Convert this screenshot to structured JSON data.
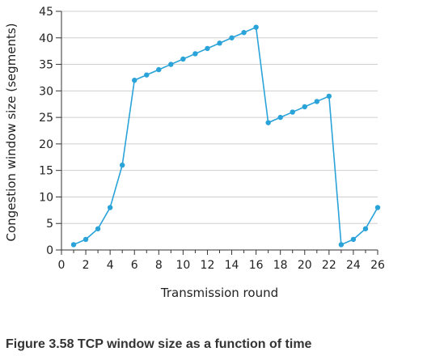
{
  "chart_data": {
    "type": "line",
    "xlabel": "Transmission round",
    "ylabel": "Congestion window size (segments)",
    "xlim": [
      0,
      26
    ],
    "ylim": [
      0,
      45
    ],
    "x_ticks": [
      0,
      2,
      4,
      6,
      8,
      10,
      12,
      14,
      16,
      18,
      20,
      22,
      24,
      26
    ],
    "y_ticks": [
      0,
      5,
      10,
      15,
      20,
      25,
      30,
      35,
      40,
      45
    ],
    "grid": true,
    "series": [
      {
        "color": "#2aa3d9",
        "x": [
          1,
          2,
          3,
          4,
          5,
          6,
          7,
          8,
          9,
          10,
          11,
          12,
          13,
          14,
          15,
          16,
          17,
          18,
          19,
          20,
          21,
          22,
          23,
          24,
          25,
          26
        ],
        "y": [
          1,
          2,
          4,
          8,
          16,
          32,
          33,
          34,
          35,
          36,
          37,
          38,
          39,
          40,
          41,
          42,
          24,
          25,
          26,
          27,
          28,
          29,
          1,
          2,
          4,
          8
        ]
      }
    ]
  },
  "caption": "Figure 3.58 TCP window size as a function of time"
}
